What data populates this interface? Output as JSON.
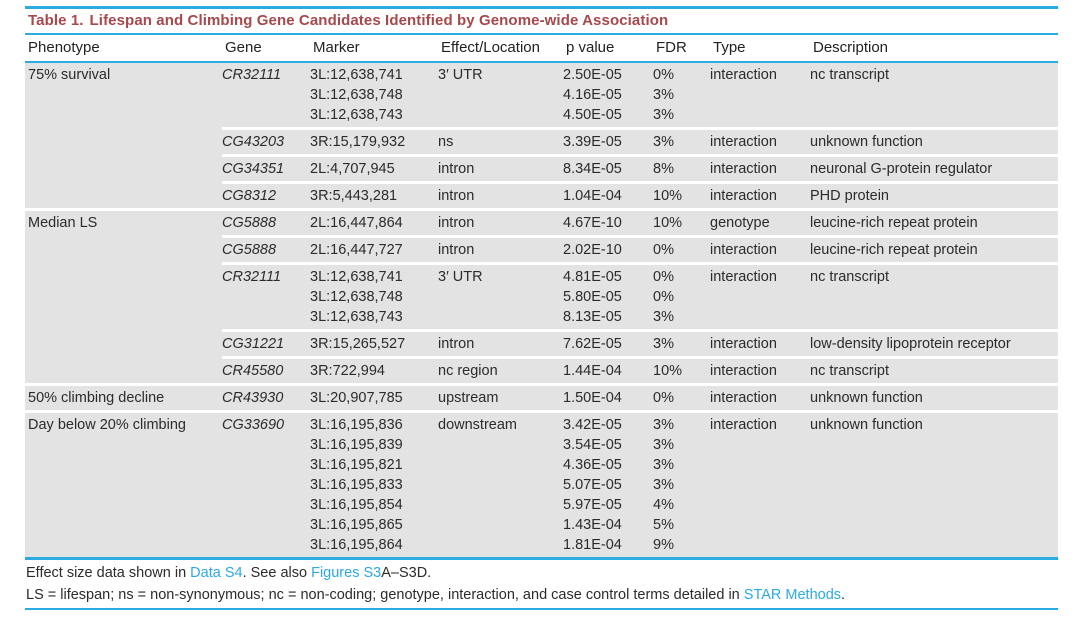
{
  "table": {
    "title_label": "Table 1.",
    "title_text": "Lifespan and Climbing Gene Candidates Identified by Genome-wide Association",
    "columns": [
      "Phenotype",
      "Gene",
      "Marker",
      "Effect/Location",
      "p value",
      "FDR",
      "Type",
      "Description"
    ],
    "groups": [
      {
        "phenotype": "75% survival",
        "rows": [
          {
            "gene": "CR32111",
            "markers": [
              "3L:12,638,741",
              "3L:12,638,748",
              "3L:12,638,743"
            ],
            "effect": "3′ UTR",
            "pvalues": [
              "2.50E-05",
              "4.16E-05",
              "4.50E-05"
            ],
            "fdr": [
              "0%",
              "3%",
              "3%"
            ],
            "type": "interaction",
            "description": "nc transcript"
          },
          {
            "gene": "CG43203",
            "markers": [
              "3R:15,179,932"
            ],
            "effect": "ns",
            "pvalues": [
              "3.39E-05"
            ],
            "fdr": [
              "3%"
            ],
            "type": "interaction",
            "description": "unknown function"
          },
          {
            "gene": "CG34351",
            "markers": [
              "2L:4,707,945"
            ],
            "effect": "intron",
            "pvalues": [
              "8.34E-05"
            ],
            "fdr": [
              "8%"
            ],
            "type": "interaction",
            "description": "neuronal G-protein regulator"
          },
          {
            "gene": "CG8312",
            "markers": [
              "3R:5,443,281"
            ],
            "effect": "intron",
            "pvalues": [
              "1.04E-04"
            ],
            "fdr": [
              "10%"
            ],
            "type": "interaction",
            "description": "PHD protein"
          }
        ]
      },
      {
        "phenotype": "Median LS",
        "rows": [
          {
            "gene": "CG5888",
            "markers": [
              "2L:16,447,864"
            ],
            "effect": "intron",
            "pvalues": [
              "4.67E-10"
            ],
            "fdr": [
              "10%"
            ],
            "type": "genotype",
            "description": "leucine-rich repeat protein"
          },
          {
            "gene": "CG5888",
            "markers": [
              "2L:16,447,727"
            ],
            "effect": "intron",
            "pvalues": [
              "2.02E-10"
            ],
            "fdr": [
              "0%"
            ],
            "type": "interaction",
            "description": "leucine-rich repeat protein"
          },
          {
            "gene": "CR32111",
            "markers": [
              "3L:12,638,741",
              "3L:12,638,748",
              "3L:12,638,743"
            ],
            "effect": "3′ UTR",
            "pvalues": [
              "4.81E-05",
              "5.80E-05",
              "8.13E-05"
            ],
            "fdr": [
              "0%",
              "0%",
              "3%"
            ],
            "type": "interaction",
            "description": "nc transcript"
          },
          {
            "gene": "CG31221",
            "markers": [
              "3R:15,265,527"
            ],
            "effect": "intron",
            "pvalues": [
              "7.62E-05"
            ],
            "fdr": [
              "3%"
            ],
            "type": "interaction",
            "description": "low-density lipoprotein receptor"
          },
          {
            "gene": "CR45580",
            "markers": [
              "3R:722,994"
            ],
            "effect": "nc region",
            "pvalues": [
              "1.44E-04"
            ],
            "fdr": [
              "10%"
            ],
            "type": "interaction",
            "description": "nc transcript"
          }
        ]
      },
      {
        "phenotype": "50% climbing decline",
        "rows": [
          {
            "gene": "CR43930",
            "markers": [
              "3L:20,907,785"
            ],
            "effect": "upstream",
            "pvalues": [
              "1.50E-04"
            ],
            "fdr": [
              "0%"
            ],
            "type": "interaction",
            "description": "unknown function"
          }
        ]
      },
      {
        "phenotype": "Day below 20% climbing",
        "rows": [
          {
            "gene": "CG33690",
            "markers": [
              "3L:16,195,836",
              "3L:16,195,839",
              "3L:16,195,821",
              "3L:16,195,833",
              "3L:16,195,854",
              "3L:16,195,865",
              "3L:16,195,864"
            ],
            "effect": "downstream",
            "pvalues": [
              "3.42E-05",
              "3.54E-05",
              "4.36E-05",
              "5.07E-05",
              "5.97E-05",
              "1.43E-04",
              "1.81E-04"
            ],
            "fdr": [
              "3%",
              "3%",
              "3%",
              "3%",
              "4%",
              "5%",
              "9%"
            ],
            "type": "interaction",
            "description": "unknown function"
          }
        ]
      }
    ],
    "footnotes": [
      {
        "segments": [
          {
            "text": "Effect size data shown in ",
            "link": false
          },
          {
            "text": "Data S4",
            "link": true
          },
          {
            "text": ". See also ",
            "link": false
          },
          {
            "text": "Figures S3",
            "link": true
          },
          {
            "text": "A–S3D.",
            "link": false
          }
        ]
      },
      {
        "segments": [
          {
            "text": "LS = lifespan; ns = non-synonymous; nc = non-coding; genotype, interaction, and case control terms detailed in ",
            "link": false
          },
          {
            "text": "STAR Methods",
            "link": true
          },
          {
            "text": ".",
            "link": false
          }
        ]
      }
    ],
    "colors": {
      "title_red": "#a6494c",
      "rule_blue": "#2aabe2",
      "row_gray": "#e3e3e3",
      "link_blue": "#2da9e1",
      "text": "#2b2b2b"
    }
  }
}
